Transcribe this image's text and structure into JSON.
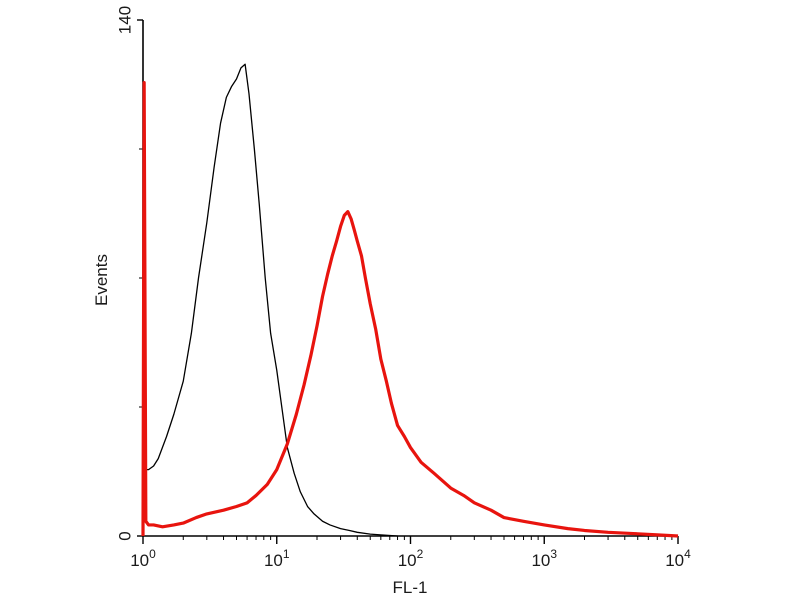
{
  "chart_data": {
    "type": "line",
    "title": "",
    "xlabel": "FL-1",
    "ylabel": "Events",
    "x_scale": "log",
    "xlim": [
      1,
      10000
    ],
    "ylim": [
      0,
      140
    ],
    "x_ticks": [
      {
        "value": 1,
        "base": "10",
        "exp": "0"
      },
      {
        "value": 10,
        "base": "10",
        "exp": "1"
      },
      {
        "value": 100,
        "base": "10",
        "exp": "2"
      },
      {
        "value": 1000,
        "base": "10",
        "exp": "3"
      },
      {
        "value": 10000,
        "base": "10",
        "exp": "4"
      }
    ],
    "y_ticks": [
      {
        "value": 0,
        "label": "0"
      },
      {
        "value": 140,
        "label": "140"
      }
    ],
    "grid": false,
    "legend": "none",
    "series": [
      {
        "color": "#000000",
        "x": [
          1,
          1.02,
          1.04,
          1.06,
          1.1,
          1.2,
          1.3,
          1.5,
          1.7,
          2.0,
          2.3,
          2.6,
          3.0,
          3.4,
          3.8,
          4.2,
          4.6,
          5.0,
          5.4,
          5.8,
          6.2,
          6.8,
          7.4,
          8.2,
          9.0,
          10,
          11,
          12,
          13.5,
          15,
          17,
          19,
          22,
          25,
          30,
          35,
          40,
          50,
          60,
          80
        ],
        "y": [
          0,
          88,
          25,
          18,
          18,
          19,
          21,
          27,
          33,
          42,
          55,
          70,
          85,
          100,
          112,
          119,
          122,
          124,
          127,
          128,
          120,
          105,
          90,
          70,
          55,
          45,
          34,
          24,
          17,
          12,
          8,
          6,
          4,
          3,
          2,
          1.5,
          1,
          0.5,
          0.3,
          0
        ]
      },
      {
        "color": "#e8140e",
        "x": [
          1,
          1.02,
          1.05,
          1.1,
          1.2,
          1.4,
          1.7,
          2.0,
          2.5,
          3.0,
          4.0,
          5.0,
          6.0,
          7.0,
          8.5,
          10,
          12,
          14,
          16,
          18,
          20,
          22,
          24,
          26,
          28,
          30,
          32,
          34,
          36,
          38,
          40,
          43,
          46,
          50,
          55,
          60,
          66,
          72,
          80,
          90,
          100,
          120,
          150,
          200,
          250,
          300,
          400,
          500,
          700,
          1000,
          1500,
          2000,
          3000,
          5000,
          7000,
          10000
        ],
        "y": [
          0,
          123,
          4,
          3,
          3,
          2.5,
          3,
          3.5,
          5,
          6,
          7,
          8,
          9,
          11,
          14,
          18,
          25,
          33,
          41,
          49,
          57,
          65,
          71,
          76,
          80,
          84,
          87,
          88,
          86,
          83,
          80,
          76,
          70,
          63,
          56,
          48,
          42,
          36,
          30,
          27,
          24,
          20,
          17,
          13,
          11,
          9,
          7,
          5,
          4,
          3,
          2,
          1.5,
          1,
          0.6,
          0.3,
          0
        ]
      }
    ]
  }
}
